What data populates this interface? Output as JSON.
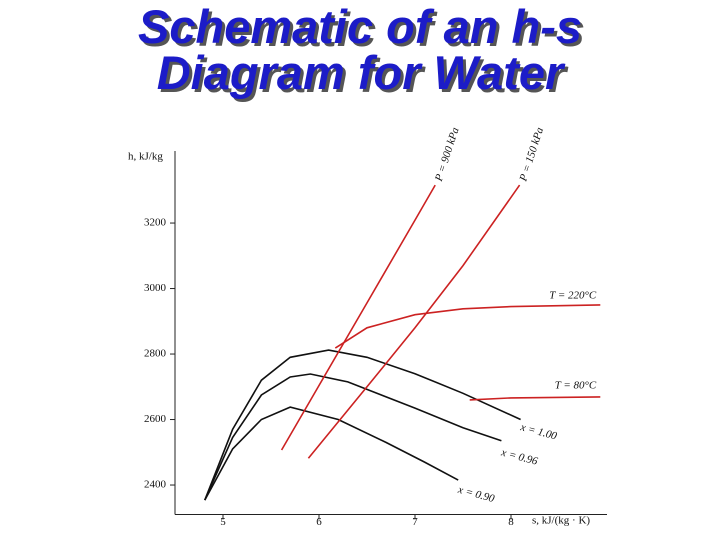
{
  "chart_data": {
    "type": "line",
    "title": "Schematic of an h-s Diagram for Water",
    "x_label": "s, kJ/(kg · K)",
    "y_label": "h, kJ/kg",
    "xlim": [
      4.5,
      9.0
    ],
    "xticks": [
      5,
      6,
      7,
      8
    ],
    "ylim": [
      2310,
      3420
    ],
    "yticks": [
      2400,
      2600,
      2800,
      3000,
      3200
    ],
    "grid": false,
    "series": [
      {
        "name": "x = 1.00",
        "color": "#111111",
        "x": [
          4.81,
          5.1,
          5.4,
          5.7,
          6.1,
          6.5,
          7.0,
          7.5,
          8.1
        ],
        "values": [
          2354,
          2570,
          2720,
          2790,
          2812,
          2790,
          2740,
          2680,
          2600
        ]
      },
      {
        "name": "x = 0.96",
        "color": "#111111",
        "x": [
          4.81,
          5.1,
          5.4,
          5.7,
          5.91,
          6.3,
          7.0,
          7.5,
          7.9
        ],
        "values": [
          2354,
          2545,
          2675,
          2730,
          2739,
          2715,
          2635,
          2575,
          2535
        ]
      },
      {
        "name": "x = 0.90",
        "color": "#111111",
        "x": [
          4.81,
          5.1,
          5.4,
          5.7,
          6.2,
          6.7,
          7.1,
          7.45
        ],
        "values": [
          2354,
          2510,
          2600,
          2638,
          2600,
          2530,
          2470,
          2415
        ]
      },
      {
        "name": "P = 900 kPa",
        "color": "#cc2222",
        "x": [
          5.61,
          6.0,
          6.5,
          7.0,
          7.21
        ],
        "values": [
          2507,
          2704,
          2956,
          3209,
          3316
        ]
      },
      {
        "name": "P = 150 kPa",
        "color": "#cc2222",
        "x": [
          5.89,
          6.5,
          7.0,
          7.5,
          8.09
        ],
        "values": [
          2482,
          2700,
          2880,
          3070,
          3316
        ]
      },
      {
        "name": "T = 220°C",
        "color": "#cc2222",
        "x": [
          6.17,
          6.5,
          7.0,
          7.5,
          8.0,
          8.93
        ],
        "values": [
          2818,
          2880,
          2920,
          2938,
          2945,
          2950
        ]
      },
      {
        "name": "T = 80°C",
        "color": "#cc2222",
        "x": [
          7.57,
          8.0,
          8.93
        ],
        "values": [
          2660,
          2666,
          2669
        ]
      }
    ]
  }
}
